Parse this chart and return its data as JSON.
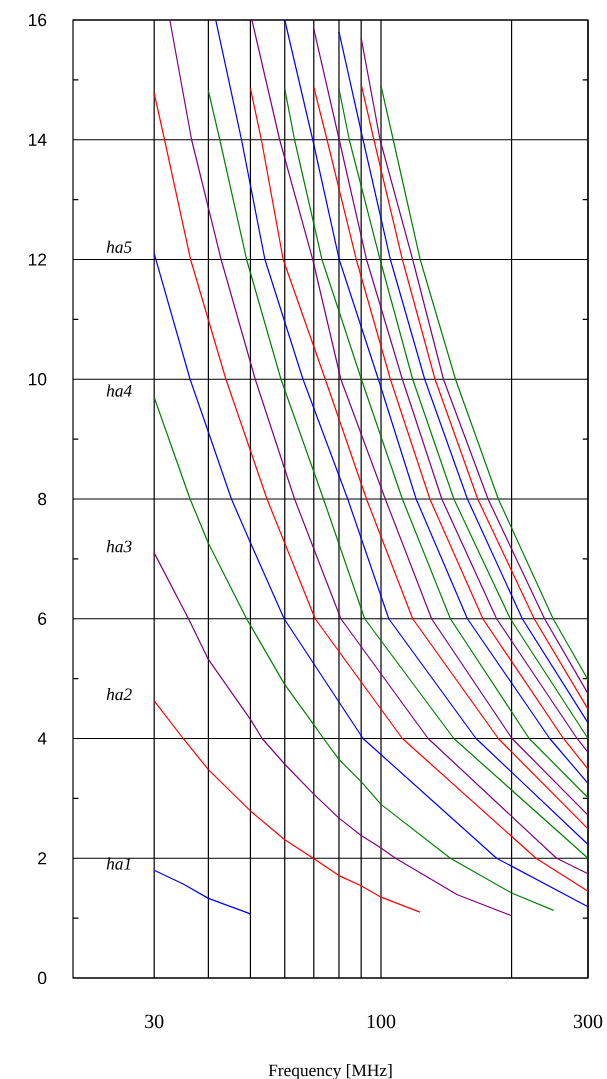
{
  "chart_data": {
    "type": "line",
    "xlabel": "Frequency [MHz]",
    "log": "x",
    "grid": true,
    "xlim": [
      19.5,
      300
    ],
    "xticks": [
      30,
      {
        "value": 40,
        "label": null
      },
      {
        "value": 50,
        "label": null
      },
      {
        "value": 60,
        "label": null
      },
      {
        "value": 70,
        "label": null
      },
      {
        "value": 80,
        "label": null
      },
      {
        "value": 90,
        "label": null
      },
      100,
      {
        "value": 200,
        "label": null
      },
      300
    ],
    "ylim": [
      0,
      16
    ],
    "yticks": [
      0,
      {
        "value": 1,
        "label": null
      },
      2,
      {
        "value": 3,
        "label": null
      },
      4,
      {
        "value": 5,
        "label": null
      },
      6,
      {
        "value": 7,
        "label": null
      },
      8,
      {
        "value": 9,
        "label": null
      },
      10,
      {
        "value": 11,
        "label": null
      },
      12,
      {
        "value": 13,
        "label": null
      },
      14,
      {
        "value": 15,
        "label": null
      },
      16
    ],
    "annotations": [
      "ha1",
      "ha2",
      "ha3",
      "ha4",
      "ha5"
    ],
    "series": [
      {
        "color": "#0000ff",
        "x": [
          30,
          35,
          40,
          50
        ],
        "values": [
          1.8,
          1.57,
          1.33,
          1.07
        ]
      },
      {
        "color": "#ff0000",
        "x": [
          30,
          35,
          40,
          50,
          60,
          69.8,
          80,
          90,
          100,
          123
        ],
        "values": [
          4.63,
          4.0,
          3.48,
          2.79,
          2.31,
          2.0,
          1.71,
          1.54,
          1.35,
          1.1
        ]
      },
      {
        "color": "#800080",
        "x": [
          30,
          36,
          40,
          50,
          53.2,
          60,
          70,
          80,
          90,
          100,
          108,
          150,
          200
        ],
        "values": [
          7.1,
          6.0,
          5.32,
          4.32,
          4.0,
          3.57,
          3.07,
          2.67,
          2.38,
          2.17,
          2.0,
          1.39,
          1.04
        ]
      },
      {
        "color": "#008000",
        "x": [
          30,
          36.3,
          40,
          49,
          60,
          70,
          73.7,
          80,
          90,
          100,
          144.5,
          200,
          250
        ],
        "values": [
          9.7,
          8.0,
          7.26,
          6.0,
          4.9,
          4.23,
          4.0,
          3.65,
          3.28,
          2.9,
          2.0,
          1.42,
          1.13
        ]
      },
      {
        "color": "#0000ff",
        "x": [
          30,
          36.3,
          40,
          45.2,
          50,
          59.8,
          90.9,
          184.7,
          300
        ],
        "values": [
          12.1,
          10.0,
          9.12,
          8.0,
          7.27,
          6.0,
          4.0,
          2.0,
          1.19
        ]
      },
      {
        "color": "#ff0000",
        "x": [
          30,
          31.7,
          36.4,
          43.9,
          54.6,
          70.5,
          112,
          227.6,
          300
        ],
        "values": [
          14.78,
          14.0,
          12.0,
          10.0,
          8.0,
          6.0,
          4.0,
          2.0,
          1.45
        ]
      },
      {
        "color": "#800080",
        "x": [
          32.6,
          36.6,
          42.8,
          51.3,
          63.2,
          80.8,
          128.4,
          253.9,
          300
        ],
        "values": [
          16.0,
          14.0,
          12.0,
          10.0,
          8.0,
          6.0,
          4.0,
          2.0,
          1.74
        ]
      },
      {
        "color": "#008000",
        "x": [
          40,
          42.5,
          49,
          58.8,
          73.7,
          91.7,
          147.2,
          300
        ],
        "values": [
          14.82,
          14.0,
          12.0,
          10.0,
          8.0,
          6.0,
          4.0,
          2.0
        ]
      },
      {
        "color": "#0000ff",
        "x": [
          41.6,
          47.7,
          54,
          66.1,
          83.8,
          104.2,
          165.6,
          300
        ],
        "values": [
          16.0,
          14.0,
          12.0,
          10.0,
          8.0,
          6.0,
          4.0,
          2.23
        ]
      },
      {
        "color": "#ff0000",
        "x": [
          50,
          53,
          59.5,
          74.4,
          92.6,
          118.3,
          186.4,
          300
        ],
        "values": [
          14.86,
          14.0,
          12.0,
          10.0,
          8.0,
          6.0,
          4.0,
          2.49
        ]
      },
      {
        "color": "#800080",
        "x": [
          50.4,
          58.4,
          69.6,
          80.8,
          102.3,
          130.8,
          200.4,
          300
        ],
        "values": [
          16.0,
          14.0,
          12.0,
          10.0,
          8.0,
          6.0,
          4.0,
          2.72
        ]
      },
      {
        "color": "#008000",
        "x": [
          60,
          63.2,
          73.1,
          90.1,
          112,
          144.5,
          219.5,
          300
        ],
        "values": [
          14.85,
          14.0,
          12.0,
          10.0,
          8.0,
          6.0,
          4.0,
          3.01
        ]
      },
      {
        "color": "#0000ff",
        "x": [
          60,
          69.6,
          80.1,
          98.6,
          120.5,
          158.2,
          244.8,
          300
        ],
        "values": [
          16.0,
          14.0,
          12.0,
          10.0,
          8.0,
          6.0,
          4.0,
          3.25
        ]
      },
      {
        "color": "#ff0000",
        "x": [
          70,
          75.1,
          87.7,
          105.1,
          129.6,
          171.7,
          263.3,
          300
        ],
        "values": [
          14.88,
          14.0,
          12.0,
          10.0,
          8.0,
          6.0,
          4.0,
          3.49
        ]
      },
      {
        "color": "#800080",
        "x": [
          70,
          80.1,
          92.6,
          112,
          138.1,
          184.7,
          283.1,
          300
        ],
        "values": [
          15.85,
          14.0,
          12.0,
          10.0,
          8.0,
          6.0,
          4.0,
          3.77
        ]
      },
      {
        "color": "#008000",
        "x": [
          80,
          84.5,
          99.5,
          118.3,
          147.2,
          198.6,
          300
        ],
        "values": [
          14.85,
          14.0,
          12.0,
          10.0,
          8.0,
          6.0,
          4.0
        ]
      },
      {
        "color": "#0000ff",
        "x": [
          80,
          90.9,
          105.1,
          126.1,
          158.2,
          211.7,
          300
        ],
        "values": [
          15.8,
          14.0,
          12.0,
          10.0,
          8.0,
          6.0,
          4.26
        ]
      },
      {
        "color": "#ff0000",
        "x": [
          90,
          96.3,
          112,
          133.2,
          167.1,
          225.5,
          300
        ],
        "values": [
          14.93,
          14.0,
          12.0,
          10.0,
          8.0,
          6.0,
          4.49
        ]
      },
      {
        "color": "#800080",
        "x": [
          90,
          99.5,
          118.3,
          139.3,
          176.5,
          238.2,
          300
        ],
        "values": [
          15.7,
          14.0,
          12.0,
          10.0,
          8.0,
          6.0,
          4.75
        ]
      },
      {
        "color": "#008000",
        "x": [
          100,
          106.7,
          123.1,
          148.5,
          186.4,
          249.3,
          300
        ],
        "values": [
          14.9,
          14.0,
          12.0,
          10.0,
          8.0,
          6.0,
          4.98
        ]
      }
    ]
  }
}
